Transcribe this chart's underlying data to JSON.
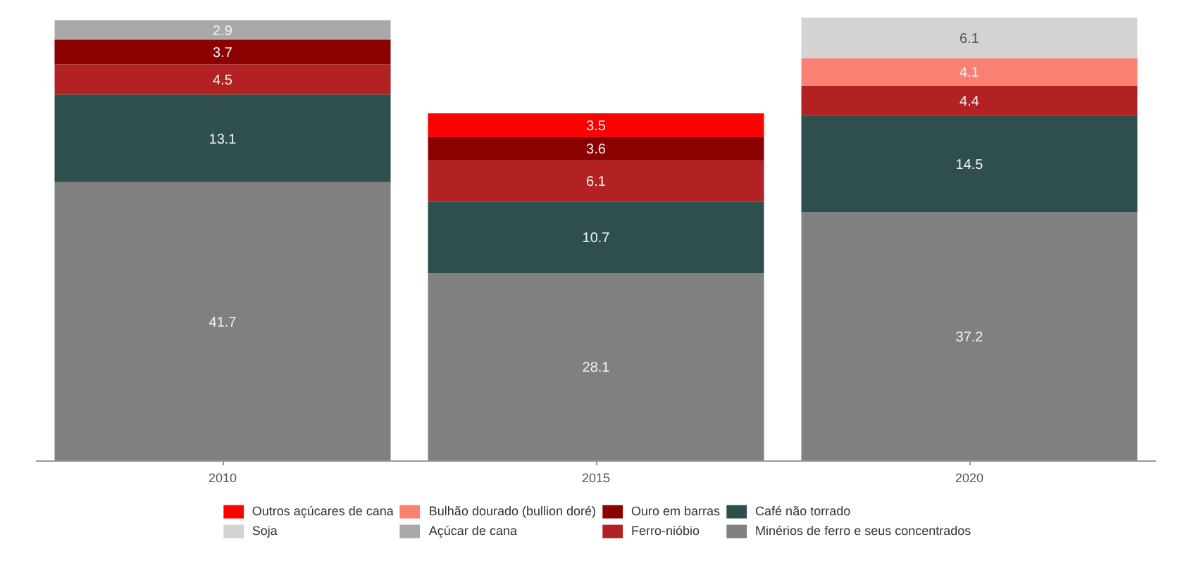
{
  "chart_data": {
    "type": "bar",
    "stacked": true,
    "data_labels": true,
    "legend": "bottom",
    "grid": false,
    "categories": [
      "2010",
      "2015",
      "2020"
    ],
    "series": [
      {
        "name": "Minérios de ferro e seus concentrados",
        "color": "#808080",
        "values": [
          41.7,
          28.1,
          37.2
        ]
      },
      {
        "name": "Café não torrado",
        "color": "#2f4f4f",
        "values": [
          13.1,
          10.7,
          14.5
        ]
      },
      {
        "name": "Ferro-nióbio",
        "color": "#b22222",
        "values": [
          4.5,
          6.1,
          4.4
        ]
      },
      {
        "name": "Ouro em barras",
        "color": "#8b0000",
        "values": [
          3.7,
          3.6,
          null
        ]
      },
      {
        "name": "Açúcar de cana",
        "color": "#a9a9a9",
        "values": [
          2.9,
          null,
          null
        ]
      },
      {
        "name": "Bulhão dourado (bullion doré)",
        "color": "#fa8072",
        "values": [
          null,
          null,
          4.1
        ]
      },
      {
        "name": "Soja",
        "color": "#d3d3d3",
        "values": [
          null,
          null,
          6.1
        ]
      },
      {
        "name": "Outros açúcares de cana",
        "color": "#ff0000",
        "values": [
          null,
          3.5,
          null
        ]
      }
    ]
  }
}
